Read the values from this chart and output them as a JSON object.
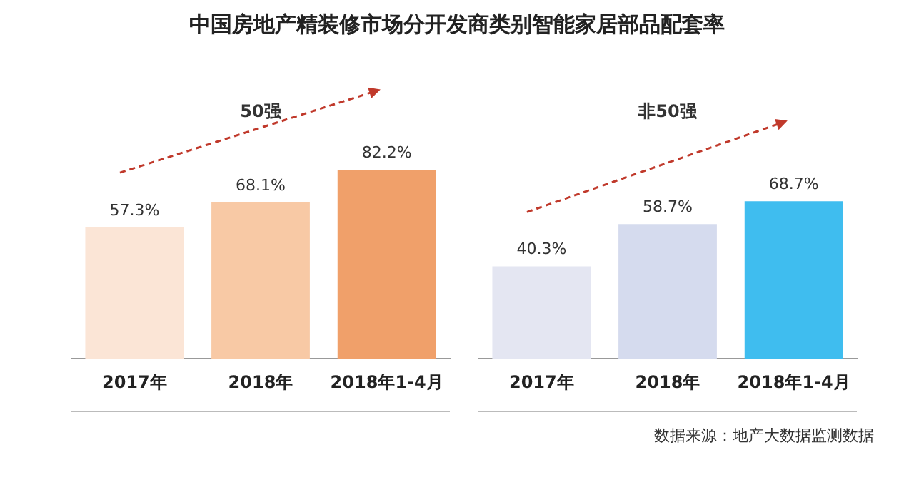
{
  "chart_data": [
    {
      "type": "bar",
      "title": "中国房地产精装修市场分开发商类别智能家居部品配套率",
      "subtitle": "50强",
      "categories": [
        "2017年",
        "2018年",
        "2018年1-4月"
      ],
      "values": [
        57.3,
        68.1,
        82.2
      ],
      "colors": [
        "#fbe5d6",
        "#f8c9a5",
        "#f0a06a"
      ],
      "value_labels": [
        "57.3%",
        "68.1%",
        "82.2%"
      ],
      "tick_labels": "x",
      "grid": false,
      "legend": false
    },
    {
      "type": "bar",
      "subtitle": "非50强",
      "categories": [
        "2017年",
        "2018年",
        "2018年1-4月"
      ],
      "values": [
        40.3,
        58.7,
        68.7
      ],
      "colors": [
        "#e4e6f2",
        "#d5dbee",
        "#3fbdef"
      ],
      "value_labels": [
        "40.3%",
        "58.7%",
        "68.7%"
      ],
      "tick_labels": "x",
      "grid": false,
      "legend": false,
      "annotations": [
        "数据来源：地产大数据监测数据"
      ]
    }
  ]
}
